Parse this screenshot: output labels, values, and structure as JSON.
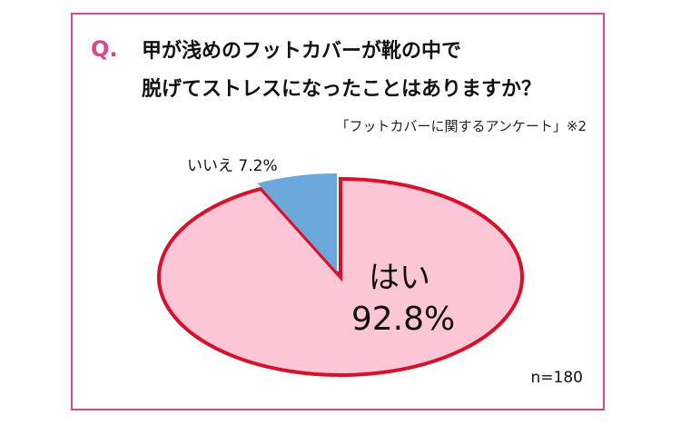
{
  "question": {
    "mark": "Q.",
    "line1": "甲が浅めのフットカバーが靴の中で",
    "line2": "脱げてストレスになったことはありますか？",
    "mark_color": "#d9478e"
  },
  "source": "「フットカバーに関するアンケート」※2",
  "sample": "n=180",
  "frame_color": "#d9478e",
  "chart_data": {
    "type": "pie",
    "slices": [
      {
        "label": "はい",
        "value": 92.8,
        "display": "92.8%",
        "color": "#fcc6d6",
        "stroke": "#d8102a"
      },
      {
        "label": "いいえ",
        "value": 7.2,
        "display": "いいえ 7.2%",
        "color": "#6aa8dc",
        "stroke": "#d8102a"
      }
    ]
  }
}
